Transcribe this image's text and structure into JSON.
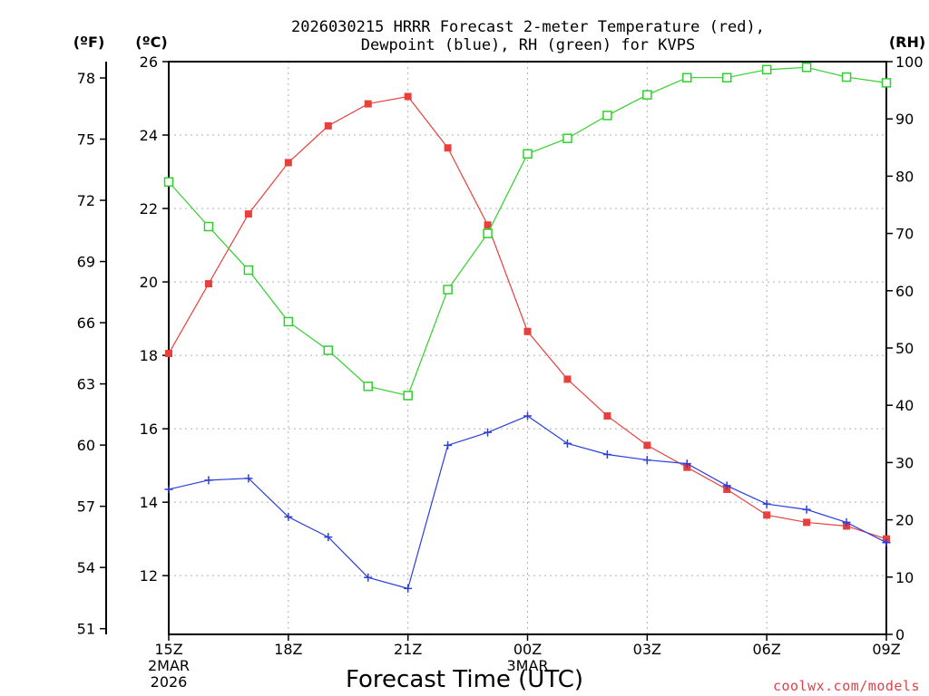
{
  "chart_data": {
    "type": "line",
    "title_line1": "2026030215 HRRR Forecast 2-meter Temperature (red),",
    "title_line2": "Dewpoint (blue), RH (green) for KVPS",
    "xlabel": "Forecast Time (UTC)",
    "credit": "coolwx.com/models",
    "units": {
      "left_f": "(ºF)",
      "left_c": "(ºC)",
      "right": "(RH)"
    },
    "x_ticks": [
      {
        "hour": 0,
        "label": "15Z",
        "sub1": "2MAR",
        "sub2": "2026"
      },
      {
        "hour": 3,
        "label": "18Z",
        "sub1": "",
        "sub2": ""
      },
      {
        "hour": 6,
        "label": "21Z",
        "sub1": "",
        "sub2": ""
      },
      {
        "hour": 9,
        "label": "00Z",
        "sub1": "3MAR",
        "sub2": ""
      },
      {
        "hour": 12,
        "label": "03Z",
        "sub1": "",
        "sub2": ""
      },
      {
        "hour": 15,
        "label": "06Z",
        "sub1": "",
        "sub2": ""
      },
      {
        "hour": 18,
        "label": "09Z",
        "sub1": "",
        "sub2": ""
      }
    ],
    "x_range": [
      0,
      18
    ],
    "c_range": [
      10.4,
      26
    ],
    "c_ticks": [
      12,
      14,
      16,
      18,
      20,
      22,
      24,
      26
    ],
    "f_ticks": [
      51,
      54,
      57,
      60,
      63,
      66,
      69,
      72,
      75,
      78
    ],
    "rh_range": [
      0,
      100
    ],
    "rh_ticks": [
      0,
      10,
      20,
      30,
      40,
      50,
      60,
      70,
      80,
      90,
      100
    ],
    "series": [
      {
        "name": "Temperature",
        "axis": "c",
        "color": "#e8403c",
        "marker": "filled-square",
        "x": [
          0,
          1,
          2,
          3,
          4,
          5,
          6,
          7,
          8,
          9,
          10,
          11,
          12,
          13,
          14,
          15,
          16,
          17,
          18
        ],
        "values": [
          18.05,
          19.95,
          21.85,
          23.25,
          24.25,
          24.85,
          25.05,
          23.65,
          21.55,
          18.65,
          17.35,
          16.35,
          15.55,
          14.95,
          14.35,
          13.65,
          13.45,
          13.35,
          13.0
        ]
      },
      {
        "name": "Dewpoint",
        "axis": "c",
        "color": "#2a3ee0",
        "marker": "plus",
        "x": [
          0,
          1,
          2,
          3,
          4,
          5,
          6,
          7,
          8,
          9,
          10,
          11,
          12,
          13,
          14,
          15,
          16,
          17,
          18
        ],
        "values": [
          14.35,
          14.6,
          14.65,
          13.6,
          13.05,
          11.95,
          11.65,
          15.55,
          15.9,
          16.35,
          15.6,
          15.3,
          15.15,
          15.05,
          14.45,
          13.95,
          13.8,
          13.45,
          12.9
        ]
      },
      {
        "name": "RH",
        "axis": "rh",
        "color": "#30d02c",
        "marker": "open-square",
        "x": [
          0,
          1,
          2,
          3,
          4,
          5,
          6,
          7,
          8,
          9,
          10,
          11,
          12,
          13,
          14,
          15,
          16,
          17,
          18
        ],
        "values": [
          79,
          71.2,
          63.6,
          54.6,
          49.6,
          43.3,
          41.7,
          60.2,
          70,
          83.9,
          86.6,
          90.6,
          94.2,
          97.2,
          97.2,
          98.6,
          99,
          97.3,
          96.3
        ]
      }
    ],
    "grid": true
  }
}
